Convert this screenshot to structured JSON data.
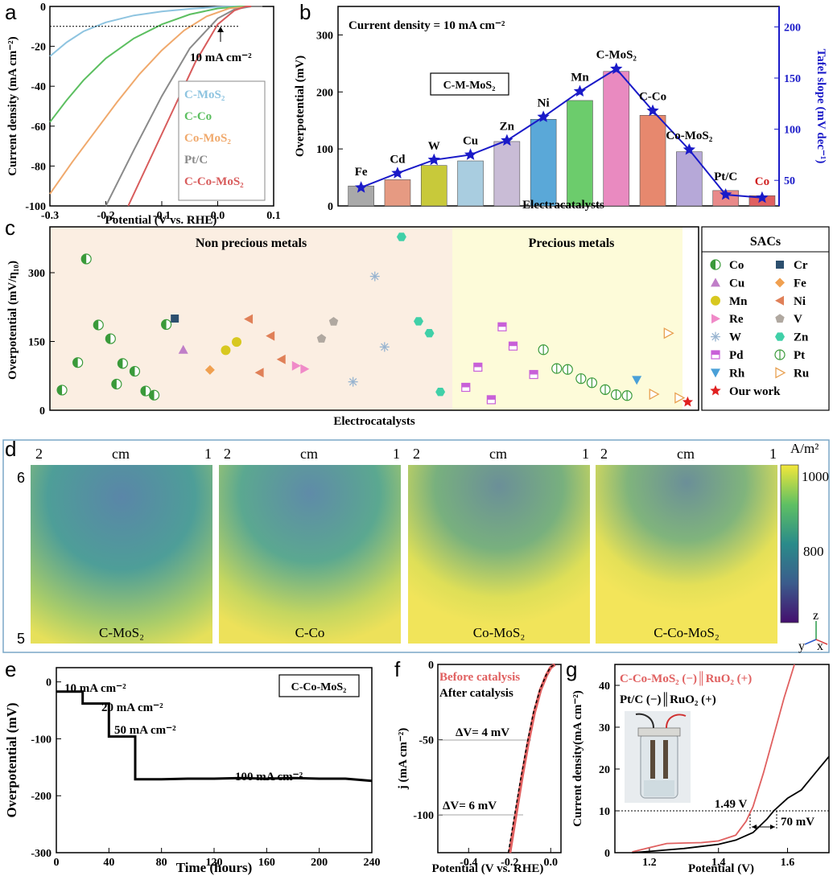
{
  "panels": {
    "a": "a",
    "b": "b",
    "c": "c",
    "d": "d",
    "e": "e",
    "f": "f",
    "g": "g"
  },
  "colors": {
    "c_mos2": "#8ec4e0",
    "c_co": "#5cbf60",
    "co_mos2": "#f0a96c",
    "ptc": "#8a8a8a",
    "c_co_mos2": "#d85c5c",
    "blue": "#1a1ac8",
    "nonprecious_bg": "#fbeee2",
    "precious_bg": "#fdfbd9"
  },
  "chart_data": [
    {
      "id": "a",
      "type": "line",
      "xlabel": "Potential (V vs. RHE)",
      "ylabel": "Current density (mA cm⁻²)",
      "xlim": [
        -0.3,
        0.1
      ],
      "ylim": [
        -100,
        0
      ],
      "xticks": [
        "-0.3",
        "-0.2",
        "-0.1",
        "0.0",
        "0.1"
      ],
      "yticks": [
        "-100",
        "-80",
        "-60",
        "-40",
        "-20",
        "0"
      ],
      "annotation": "10 mA cm⁻²",
      "reference_y": -10,
      "series": [
        {
          "name": "C-MoS₂",
          "color": "#8ec4e0",
          "x": [
            -0.3,
            -0.27,
            -0.24,
            -0.2,
            -0.15,
            -0.1,
            -0.05,
            0.0,
            0.03,
            0.05
          ],
          "y": [
            -25,
            -18,
            -12.5,
            -8,
            -4.5,
            -2.5,
            -1.2,
            -0.3,
            0,
            0
          ]
        },
        {
          "name": "C-Co",
          "color": "#5cbf60",
          "x": [
            -0.3,
            -0.27,
            -0.24,
            -0.2,
            -0.15,
            -0.1,
            -0.05,
            0.0,
            0.04,
            0.07
          ],
          "y": [
            -58,
            -47,
            -37,
            -26,
            -16,
            -9,
            -4,
            -1,
            0,
            0
          ]
        },
        {
          "name": "Co-MoS₂",
          "color": "#f0a96c",
          "x": [
            -0.3,
            -0.26,
            -0.22,
            -0.18,
            -0.14,
            -0.1,
            -0.06,
            -0.02,
            0.02,
            0.06
          ],
          "y": [
            -94,
            -78,
            -63,
            -48,
            -34,
            -22,
            -12,
            -5,
            -1,
            0
          ]
        },
        {
          "name": "Pt/C",
          "color": "#8a8a8a",
          "x": [
            -0.2,
            -0.15,
            -0.1,
            -0.05,
            0.0,
            0.03,
            0.06,
            0.08
          ],
          "y": [
            -100,
            -72,
            -45,
            -21,
            -6,
            -1.5,
            0,
            0
          ]
        },
        {
          "name": "C-Co-MoS₂",
          "color": "#d85c5c",
          "x": [
            -0.16,
            -0.12,
            -0.08,
            -0.04,
            0.0,
            0.03,
            0.05,
            0.06
          ],
          "y": [
            -100,
            -76,
            -52,
            -28,
            -9,
            -2,
            0,
            0
          ]
        }
      ]
    },
    {
      "id": "b",
      "type": "bar",
      "title": "Current density = 10 mA cm⁻²",
      "inset_label": "C-M-MoS₂",
      "xlabel": "Electracatalysts",
      "ylabel": "Overpotential (mV)",
      "y2label": "Tafel slope (mV dec⁻¹)",
      "ylim": [
        0,
        350
      ],
      "y2lim": [
        25,
        220
      ],
      "yticks": [
        "0",
        "100",
        "200",
        "300"
      ],
      "y2ticks": [
        "50",
        "100",
        "150",
        "200"
      ],
      "categories": [
        "Fe",
        "Cd",
        "W",
        "Cu",
        "Zn",
        "Ni",
        "Mn",
        "C-MoS₂",
        "C-Co",
        "Co-MoS₂",
        "Pt/C",
        "Co"
      ],
      "bar_colors": [
        "#a9a9a9",
        "#e69a82",
        "#c8c93a",
        "#a9cde0",
        "#c9bcd6",
        "#5aa8d8",
        "#6ccc6c",
        "#e98ac0",
        "#e7886e",
        "#b6a8d8",
        "#e98a8a",
        "#e06060"
      ],
      "values": [
        35,
        46,
        71,
        79,
        113,
        152,
        185,
        236,
        159,
        95,
        27,
        18
      ],
      "tafel": [
        43,
        57,
        70,
        75,
        89,
        112,
        137,
        159,
        118,
        80,
        36,
        33
      ]
    },
    {
      "id": "c",
      "type": "scatter",
      "xlabel": "Electrocatalysts",
      "ylabel": "Overpotential (mV/η₁₀)",
      "ylim": [
        0,
        400
      ],
      "yticks": [
        "0",
        "150",
        "300"
      ],
      "region_labels": [
        "Non precious metals",
        "Precious metals"
      ],
      "legend_title": "SACs",
      "legend": [
        {
          "name": "Co",
          "marker": "half",
          "color": "#3a9a3a"
        },
        {
          "name": "Cr",
          "marker": "square",
          "color": "#2c4f6e"
        },
        {
          "name": "Cu",
          "marker": "triangle-up",
          "color": "#c07ec8"
        },
        {
          "name": "Fe",
          "marker": "diamond",
          "color": "#f0a050"
        },
        {
          "name": "Mn",
          "marker": "circle",
          "color": "#d8c820"
        },
        {
          "name": "Ni",
          "marker": "triangle-left",
          "color": "#e08058"
        },
        {
          "name": "Re",
          "marker": "triangle-right",
          "color": "#f08ac8"
        },
        {
          "name": "V",
          "marker": "pentagon",
          "color": "#b0a8a0"
        },
        {
          "name": "W",
          "marker": "star-line",
          "color": "#98b4d0"
        },
        {
          "name": "Zn",
          "marker": "hexagon",
          "color": "#40d0a8"
        },
        {
          "name": "Pd",
          "marker": "square-half",
          "color": "#c860d8"
        },
        {
          "name": "Pt",
          "marker": "circle-line",
          "color": "#3a9a3a"
        },
        {
          "name": "Rh",
          "marker": "triangle-down",
          "color": "#4aa0d8"
        },
        {
          "name": "Ru",
          "marker": "triangle-right-open",
          "color": "#e8a050"
        },
        {
          "name": "Our work",
          "marker": "star",
          "color": "#e02020"
        }
      ],
      "points": [
        {
          "s": "Co",
          "x": 1,
          "y": 44
        },
        {
          "s": "Co",
          "x": 3,
          "y": 330
        },
        {
          "s": "Co",
          "x": 2.3,
          "y": 104
        },
        {
          "s": "Co",
          "x": 4,
          "y": 186
        },
        {
          "s": "Co",
          "x": 5,
          "y": 156
        },
        {
          "s": "Co",
          "x": 6,
          "y": 102
        },
        {
          "s": "Co",
          "x": 5.5,
          "y": 57
        },
        {
          "s": "Co",
          "x": 7,
          "y": 85
        },
        {
          "s": "Co",
          "x": 7.9,
          "y": 42
        },
        {
          "s": "Co",
          "x": 8.6,
          "y": 33
        },
        {
          "s": "Co",
          "x": 9.6,
          "y": 187
        },
        {
          "s": "Cr",
          "x": 10.3,
          "y": 200
        },
        {
          "s": "Cu",
          "x": 11,
          "y": 132
        },
        {
          "s": "Fe",
          "x": 13.2,
          "y": 88
        },
        {
          "s": "Mn",
          "x": 14.5,
          "y": 131
        },
        {
          "s": "Mn",
          "x": 15.4,
          "y": 149
        },
        {
          "s": "Ni",
          "x": 16.4,
          "y": 199
        },
        {
          "s": "Ni",
          "x": 17.3,
          "y": 82
        },
        {
          "s": "Ni",
          "x": 18.2,
          "y": 162
        },
        {
          "s": "Ni",
          "x": 19.1,
          "y": 111
        },
        {
          "s": "Re",
          "x": 20.3,
          "y": 97
        },
        {
          "s": "Re",
          "x": 21,
          "y": 90
        },
        {
          "s": "V",
          "x": 22.4,
          "y": 156
        },
        {
          "s": "V",
          "x": 23.4,
          "y": 193
        },
        {
          "s": "W",
          "x": 25,
          "y": 62
        },
        {
          "s": "W",
          "x": 26.8,
          "y": 292
        },
        {
          "s": "W",
          "x": 27.6,
          "y": 138
        },
        {
          "s": "Zn",
          "x": 29,
          "y": 378
        },
        {
          "s": "Zn",
          "x": 30.4,
          "y": 194
        },
        {
          "s": "Zn",
          "x": 31.3,
          "y": 168
        },
        {
          "s": "Zn",
          "x": 32.2,
          "y": 40
        },
        {
          "s": "Pd",
          "x": 34.3,
          "y": 50
        },
        {
          "s": "Pd",
          "x": 35.3,
          "y": 94
        },
        {
          "s": "Pd",
          "x": 36.4,
          "y": 23
        },
        {
          "s": "Pd",
          "x": 37.3,
          "y": 182
        },
        {
          "s": "Pd",
          "x": 38.2,
          "y": 140
        },
        {
          "s": "Pd",
          "x": 39.9,
          "y": 78
        },
        {
          "s": "Pt",
          "x": 40.7,
          "y": 132
        },
        {
          "s": "Pt",
          "x": 41.8,
          "y": 91
        },
        {
          "s": "Pt",
          "x": 42.7,
          "y": 89
        },
        {
          "s": "Pt",
          "x": 43.8,
          "y": 69
        },
        {
          "s": "Pt",
          "x": 44.7,
          "y": 60
        },
        {
          "s": "Pt",
          "x": 45.8,
          "y": 45
        },
        {
          "s": "Pt",
          "x": 46.7,
          "y": 34
        },
        {
          "s": "Pt",
          "x": 47.6,
          "y": 32
        },
        {
          "s": "Rh",
          "x": 48.4,
          "y": 66
        },
        {
          "s": "Ru",
          "x": 49.8,
          "y": 35
        },
        {
          "s": "Ru",
          "x": 51,
          "y": 168
        },
        {
          "s": "Ru",
          "x": 51.9,
          "y": 27
        },
        {
          "s": "Our work",
          "x": 52.6,
          "y": 18
        }
      ]
    },
    {
      "id": "d",
      "type": "heatmap",
      "unit": "A/m²",
      "colorbar_ticks": [
        "1000",
        "800"
      ],
      "axis_unit": "cm",
      "x_tick_left": "2",
      "x_tick_right": "1",
      "y_tick_top": "6",
      "y_tick_bottom": "5",
      "axes_labels": [
        "z",
        "y",
        "x"
      ],
      "maps": [
        {
          "name": "C-MoS₂",
          "level": 0.45
        },
        {
          "name": "C-Co",
          "level": 0.5
        },
        {
          "name": "Co-MoS₂",
          "level": 0.6
        },
        {
          "name": "C-Co-MoS₂",
          "level": 0.65
        }
      ]
    },
    {
      "id": "e",
      "type": "line",
      "label": "C-Co-MoS₂",
      "xlabel": "Time (hours)",
      "ylabel": "Overpotential (mV)",
      "xlim": [
        0,
        240
      ],
      "ylim": [
        -300,
        25
      ],
      "xticks": [
        "0",
        "40",
        "80",
        "120",
        "160",
        "200",
        "240"
      ],
      "yticks": [
        "-300",
        "-200",
        "-100",
        "0"
      ],
      "annotations": [
        "10 mA cm⁻²",
        "20 mA cm⁻²",
        "50 mA cm⁻²",
        "100 mA cm⁻²"
      ],
      "x": [
        0,
        20,
        20,
        40,
        40,
        60,
        60,
        80,
        100,
        120,
        140,
        160,
        180,
        200,
        220,
        240
      ],
      "y": [
        -17,
        -17,
        -38,
        -38,
        -96,
        -96,
        -171,
        -171,
        -170,
        -170,
        -169,
        -170,
        -169,
        -170,
        -170,
        -174
      ]
    },
    {
      "id": "f",
      "type": "line",
      "xlabel": "Potential (V vs. RHE)",
      "ylabel": "j (mA cm⁻²)",
      "xlim": [
        -0.55,
        0.05
      ],
      "ylim": [
        -125,
        0
      ],
      "xticks": [
        "-0.4",
        "-0.2",
        "0.0"
      ],
      "yticks": [
        "-100",
        "-50",
        "0"
      ],
      "annotations": [
        "ΔV= 4 mV",
        "ΔV= 6 mV"
      ],
      "series": [
        {
          "name": "Before catalysis",
          "color": "#e06060",
          "x": [
            -0.2,
            -0.17,
            -0.14,
            -0.11,
            -0.08,
            -0.05,
            -0.02,
            0.0,
            0.02
          ],
          "y": [
            -125,
            -100,
            -75,
            -52,
            -32,
            -17,
            -7,
            -2,
            0
          ]
        },
        {
          "name": "After catalysis",
          "color": "#000000",
          "x": [
            -0.206,
            -0.176,
            -0.145,
            -0.114,
            -0.084,
            -0.053,
            -0.022,
            -0.002,
            0.018
          ],
          "y": [
            -125,
            -100,
            -75,
            -52,
            -32,
            -17,
            -7,
            -2,
            0
          ]
        }
      ]
    },
    {
      "id": "g",
      "type": "line",
      "xlabel": "Potential (V)",
      "ylabel": "Current density(mA cm⁻²)",
      "xlim": [
        1.1,
        1.72
      ],
      "ylim": [
        0,
        45
      ],
      "xticks": [
        "1.2",
        "1.4",
        "1.6"
      ],
      "yticks": [
        "0",
        "10",
        "20",
        "30",
        "40"
      ],
      "annotations": [
        "1.49 V",
        "70 mV"
      ],
      "series": [
        {
          "name": "C-Co-MoS₂ (−)║RuO₂ (+)",
          "color": "#e06060",
          "x": [
            1.15,
            1.2,
            1.25,
            1.3,
            1.35,
            1.4,
            1.45,
            1.48,
            1.5,
            1.53,
            1.56,
            1.59,
            1.62
          ],
          "y": [
            0.2,
            1.2,
            2.2,
            2.3,
            2.4,
            2.8,
            4.2,
            7.5,
            11,
            19,
            28,
            37,
            45
          ]
        },
        {
          "name": "Pt/C (−)║RuO₂ (+)",
          "color": "#000000",
          "x": [
            1.15,
            1.2,
            1.3,
            1.4,
            1.45,
            1.5,
            1.54,
            1.56,
            1.6,
            1.64,
            1.68,
            1.72
          ],
          "y": [
            0,
            0.3,
            1,
            2,
            3,
            4.8,
            8,
            10,
            13,
            15,
            19,
            23
          ]
        }
      ]
    }
  ]
}
